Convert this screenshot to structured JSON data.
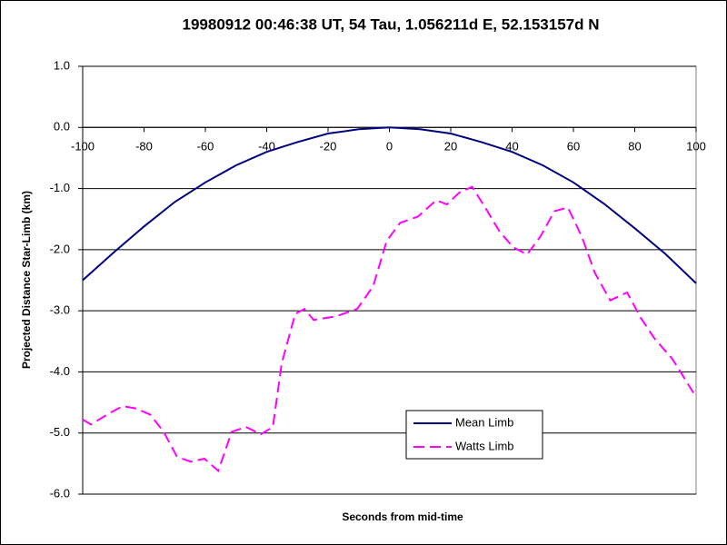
{
  "chart_data": {
    "type": "line",
    "title": "19980912 00:46:38 UT, 54 Tau, 1.056211d E, 52.153157d N",
    "xlabel": "Seconds from mid-time",
    "ylabel": "Projected Distance Star-Limb (km)",
    "xlim": [
      -100,
      100
    ],
    "xticks": [
      -100,
      -80,
      -60,
      -40,
      -20,
      0,
      20,
      40,
      60,
      80,
      100
    ],
    "ylim": [
      -6,
      1
    ],
    "yticks": [
      {
        "value": 1,
        "label": "1.0"
      },
      {
        "value": 0,
        "label": "0.0"
      },
      {
        "value": -1,
        "label": "-1.0"
      },
      {
        "value": -2,
        "label": "-2.0"
      },
      {
        "value": -3,
        "label": "-3.0"
      },
      {
        "value": -4,
        "label": "-4.0"
      },
      {
        "value": -5,
        "label": "-5.0"
      },
      {
        "value": -6,
        "label": "-6.0"
      }
    ],
    "grid": true,
    "legend": "lower-center",
    "series": [
      {
        "name": "Mean Limb",
        "color": "#000080",
        "dash": false,
        "x": [
          -100,
          -90,
          -80,
          -70,
          -60,
          -50,
          -40,
          -30,
          -20,
          -10,
          0,
          10,
          20,
          30,
          40,
          50,
          60,
          70,
          80,
          90,
          100
        ],
        "values": [
          -2.5,
          -2.05,
          -1.62,
          -1.22,
          -0.9,
          -0.62,
          -0.4,
          -0.24,
          -0.1,
          -0.03,
          0,
          -0.03,
          -0.1,
          -0.24,
          -0.4,
          -0.62,
          -0.9,
          -1.25,
          -1.65,
          -2.07,
          -2.55
        ]
      },
      {
        "name": "Watts Limb",
        "color": "#ff00ff",
        "dash": true,
        "x": [
          -100,
          -97.3,
          -91.4,
          -87,
          -82.5,
          -78,
          -73.6,
          -69.2,
          -64.7,
          -60.3,
          -55.8,
          -51.4,
          -46.8,
          -41.9,
          -38,
          -35.1,
          -30.7,
          -27.7,
          -24.7,
          -17.3,
          -10.5,
          -5.3,
          -0.9,
          3.5,
          9.3,
          15.3,
          18.8,
          22.7,
          27,
          31.6,
          36,
          40.4,
          44.9,
          49.3,
          53.8,
          58.2,
          62.7,
          67,
          72,
          77.5,
          82,
          86.4,
          92.3,
          100
        ],
        "values": [
          -4.78,
          -4.86,
          -4.68,
          -4.56,
          -4.6,
          -4.7,
          -4.98,
          -5.39,
          -5.47,
          -5.42,
          -5.62,
          -4.98,
          -4.9,
          -5.02,
          -4.9,
          -3.86,
          -3.05,
          -2.97,
          -3.15,
          -3.09,
          -2.97,
          -2.6,
          -1.86,
          -1.56,
          -1.46,
          -1.19,
          -1.26,
          -1.07,
          -0.97,
          -1.34,
          -1.71,
          -1.96,
          -2.08,
          -1.78,
          -1.37,
          -1.31,
          -1.78,
          -2.38,
          -2.83,
          -2.7,
          -3.12,
          -3.45,
          -3.79,
          -4.41
        ]
      }
    ]
  }
}
